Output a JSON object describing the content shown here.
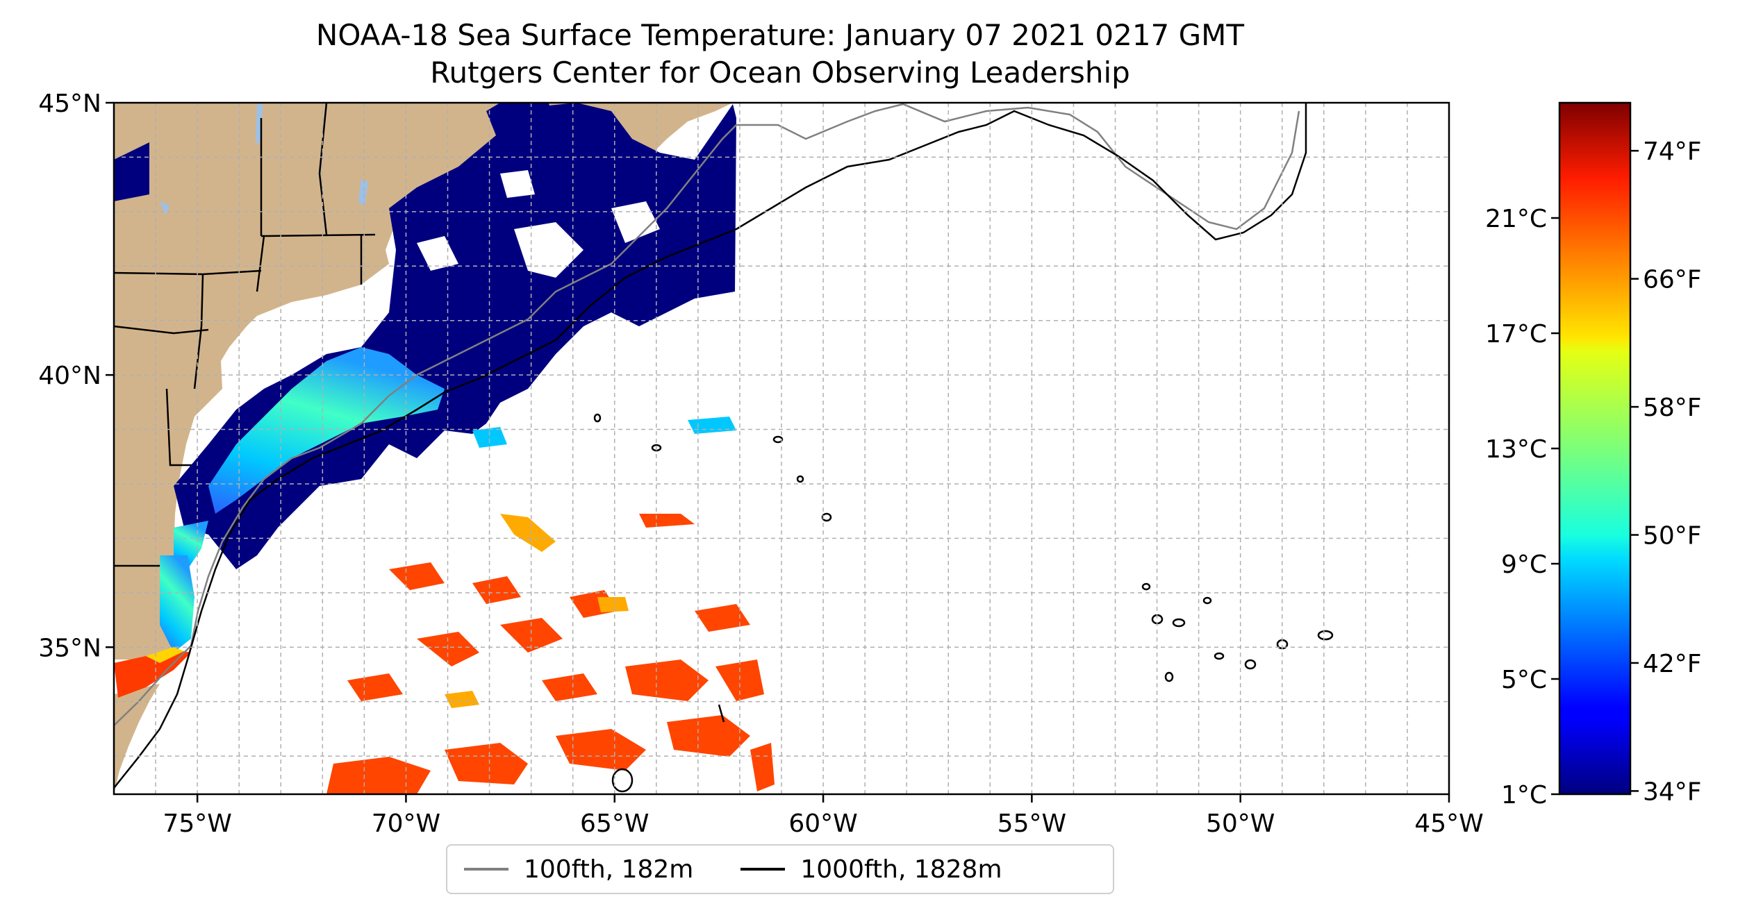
{
  "title": {
    "line1": "NOAA-18 Sea Surface Temperature: January 07 2021 0217 GMT",
    "line2": "Rutgers Center for Ocean Observing Leadership"
  },
  "map": {
    "lon_range": [
      -77,
      -45
    ],
    "lat_range": [
      32.3,
      45
    ],
    "x_ticks": [
      {
        "value": -75,
        "label": "75°W"
      },
      {
        "value": -70,
        "label": "70°W"
      },
      {
        "value": -65,
        "label": "65°W"
      },
      {
        "value": -60,
        "label": "60°W"
      },
      {
        "value": -55,
        "label": "55°W"
      },
      {
        "value": -50,
        "label": "50°W"
      },
      {
        "value": -45,
        "label": "45°W"
      }
    ],
    "y_ticks": [
      {
        "value": 45,
        "label": "45°N"
      },
      {
        "value": 40,
        "label": "40°N"
      },
      {
        "value": 35,
        "label": "35°N"
      }
    ],
    "gridlines": true,
    "land_color": "#d2b48c",
    "lake_color": "#9cc1e8"
  },
  "legend": {
    "placement": "bottom-center",
    "items": [
      {
        "label": "100fth, 182m",
        "color": "#808080"
      },
      {
        "label": "1000fth, 1828m",
        "color": "#000000"
      }
    ]
  },
  "colorbar": {
    "colormap": "jet",
    "range_celsius": [
      1,
      25
    ],
    "celsius_ticks": [
      {
        "value": 1,
        "label": "1°C"
      },
      {
        "value": 5,
        "label": "5°C"
      },
      {
        "value": 9,
        "label": "9°C"
      },
      {
        "value": 13,
        "label": "13°C"
      },
      {
        "value": 17,
        "label": "17°C"
      },
      {
        "value": 21,
        "label": "21°C"
      }
    ],
    "fahrenheit_ticks": [
      {
        "value": 34,
        "label": "34°F"
      },
      {
        "value": 42,
        "label": "42°F"
      },
      {
        "value": 50,
        "label": "50°F"
      },
      {
        "value": 58,
        "label": "58°F"
      },
      {
        "value": 66,
        "label": "66°F"
      },
      {
        "value": 74,
        "label": "74°F"
      }
    ]
  }
}
